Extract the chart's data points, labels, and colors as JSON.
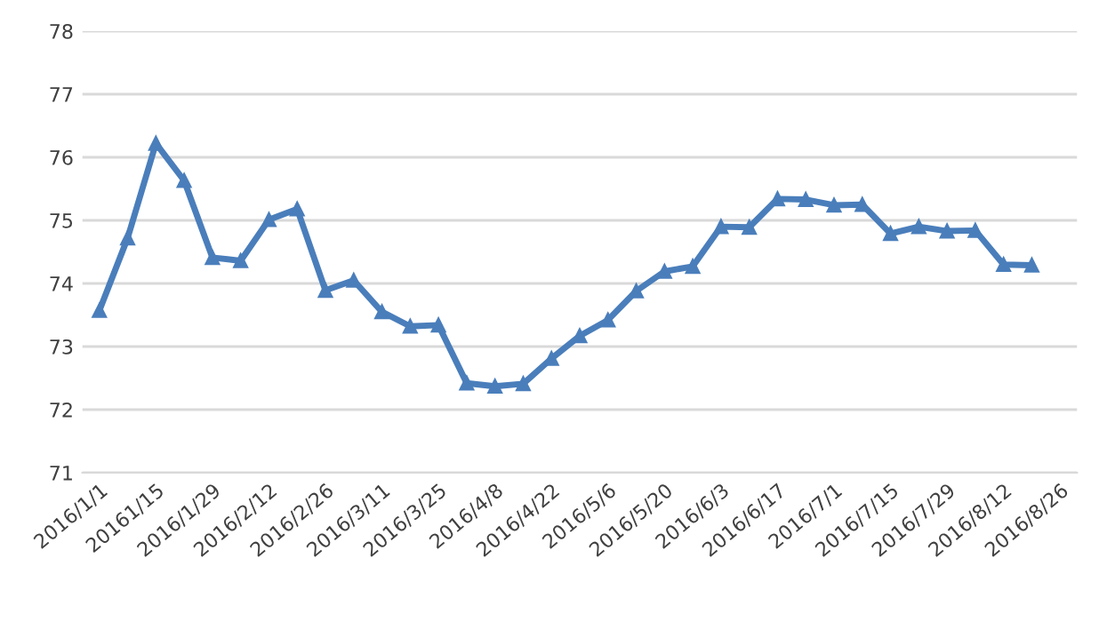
{
  "chart_data": {
    "type": "line",
    "categories": [
      "2016/1/1",
      null,
      "20161/15",
      null,
      "2016/1/29",
      null,
      "2016/2/12",
      null,
      "2016/2/26",
      null,
      "2016/3/11",
      null,
      "2016/3/25",
      null,
      "2016/4/8",
      null,
      "2016/4/22",
      null,
      "2016/5/6",
      null,
      "2016/5/20",
      null,
      "2016/6/3",
      null,
      "2016/6/17",
      null,
      "2016/7/1",
      null,
      "2016/7/15",
      null,
      "2016/7/29",
      null,
      "2016/8/12",
      null,
      "2016/8/26"
    ],
    "series": [
      {
        "color": "#4a7ebb",
        "values": [
          73.57,
          74.72,
          76.22,
          75.63,
          74.41,
          74.36,
          75.01,
          75.18,
          73.89,
          74.05,
          73.55,
          73.32,
          73.34,
          72.42,
          72.37,
          72.41,
          72.81,
          73.17,
          73.42,
          73.88,
          74.19,
          74.27,
          74.9,
          74.89,
          75.34,
          75.33,
          75.24,
          75.25,
          74.79,
          74.9,
          74.83,
          74.84,
          74.3,
          74.29,
          null
        ]
      }
    ],
    "ylim": [
      71,
      78
    ],
    "yticks": [
      71,
      72,
      73,
      74,
      75,
      76,
      77,
      78
    ],
    "grid": "y",
    "marker": "triangle",
    "line_style": "solid",
    "legend": false
  }
}
